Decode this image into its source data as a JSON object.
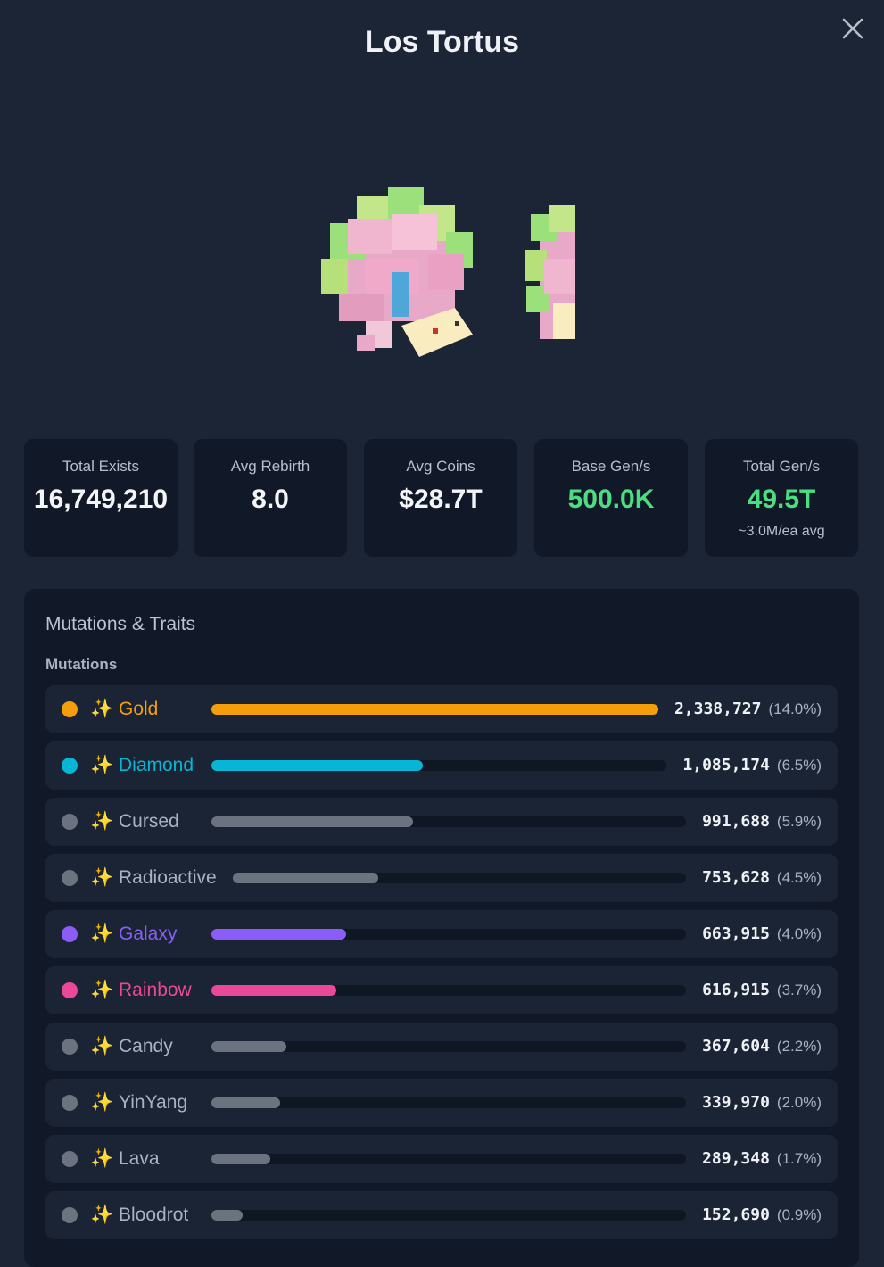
{
  "header": {
    "title": "Los Tortus"
  },
  "stats": [
    {
      "label": "Total Exists",
      "value": "16,749,210",
      "sub": ""
    },
    {
      "label": "Avg Rebirth",
      "value": "8.0",
      "sub": ""
    },
    {
      "label": "Avg Coins",
      "value": "$28.7T",
      "sub": ""
    },
    {
      "label": "Base Gen/s",
      "value": "500.0K",
      "sub": ""
    },
    {
      "label": "Total Gen/s",
      "value": "49.5T",
      "sub": "~3.0M/ea avg"
    }
  ],
  "panel": {
    "title": "Mutations & Traits",
    "section": "Mutations"
  },
  "mutations": [
    {
      "name": "Gold",
      "count": "2,338,727",
      "pct": "(14.0%)",
      "share": 1.0,
      "color": "#f59e0b"
    },
    {
      "name": "Diamond",
      "count": "1,085,174",
      "pct": "(6.5%)",
      "share": 0.464,
      "color": "#06b6d4"
    },
    {
      "name": "Cursed",
      "count": "991,688",
      "pct": "(5.9%)",
      "share": 0.424,
      "color": "#6b7280"
    },
    {
      "name": "Radioactive",
      "count": "753,628",
      "pct": "(4.5%)",
      "share": 0.322,
      "color": "#6b7280"
    },
    {
      "name": "Galaxy",
      "count": "663,915",
      "pct": "(4.0%)",
      "share": 0.284,
      "color": "#8b5cf6"
    },
    {
      "name": "Rainbow",
      "count": "616,915",
      "pct": "(3.7%)",
      "share": 0.264,
      "color": "#ec4899"
    },
    {
      "name": "Candy",
      "count": "367,604",
      "pct": "(2.2%)",
      "share": 0.157,
      "color": "#6b7280"
    },
    {
      "name": "YinYang",
      "count": "339,970",
      "pct": "(2.0%)",
      "share": 0.145,
      "color": "#6b7280"
    },
    {
      "name": "Lava",
      "count": "289,348",
      "pct": "(1.7%)",
      "share": 0.124,
      "color": "#6b7280"
    },
    {
      "name": "Bloodrot",
      "count": "152,690",
      "pct": "(0.9%)",
      "share": 0.065,
      "color": "#6b7280"
    }
  ],
  "icons": {
    "close": "close-icon",
    "mutation": "sparkle-icon"
  }
}
